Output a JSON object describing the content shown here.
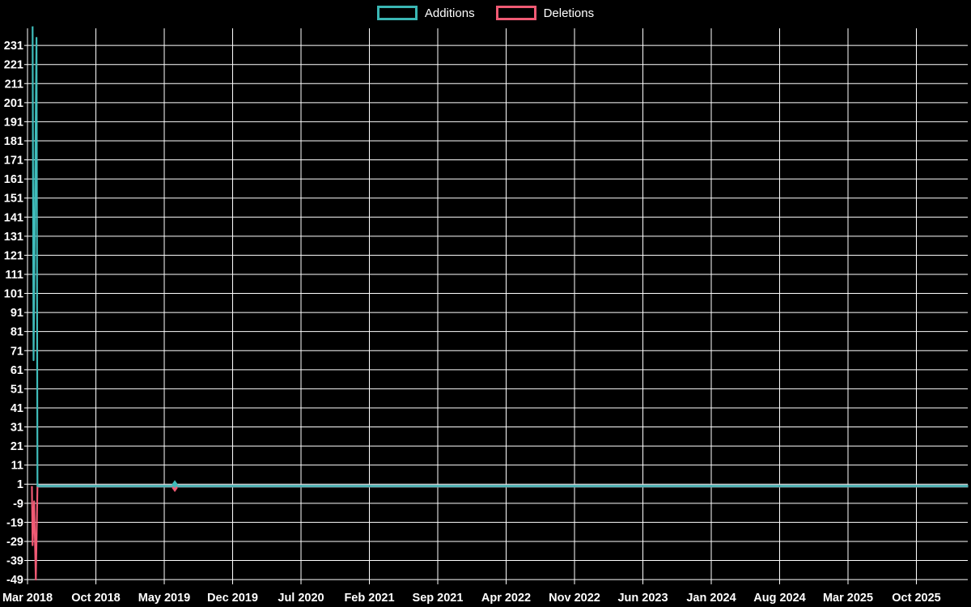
{
  "chart_data": {
    "type": "line",
    "title": "",
    "background_color": "#000000",
    "grid_color": "#ffffff",
    "text_color": "#ffffff",
    "legend": {
      "position": "top-center",
      "items": [
        {
          "label": "Additions",
          "color": "#3ab7b4"
        },
        {
          "label": "Deletions",
          "color": "#f05a74"
        }
      ]
    },
    "x_axis": {
      "tick_labels": [
        "Mar 2018",
        "Oct 2018",
        "May 2019",
        "Dec 2019",
        "Jul 2020",
        "Feb 2021",
        "Sep 2021",
        "Apr 2022",
        "Nov 2022",
        "Jun 2023",
        "Jan 2024",
        "Aug 2024",
        "Mar 2025",
        "Oct 2025"
      ],
      "months_between_ticks": 7
    },
    "y_axis": {
      "tick_values": [
        231,
        221,
        211,
        201,
        191,
        181,
        171,
        161,
        151,
        141,
        131,
        121,
        111,
        101,
        91,
        81,
        71,
        61,
        51,
        41,
        31,
        21,
        11,
        1,
        -9,
        -19,
        -29,
        -39,
        -49
      ],
      "range": [
        -49,
        241
      ],
      "grid": true
    },
    "series": [
      {
        "name": "Additions",
        "color": "#3fbcba",
        "points_month_value": [
          [
            0.52,
            241
          ],
          [
            0.62,
            66
          ],
          [
            0.92,
            235
          ],
          [
            1.02,
            0
          ],
          [
            96.3,
            0
          ]
        ]
      },
      {
        "name": "Deletions",
        "color": "#f05a74",
        "points_month_value": [
          [
            0.45,
            0
          ],
          [
            0.52,
            -31
          ],
          [
            0.68,
            -8
          ],
          [
            0.85,
            -49
          ],
          [
            1.02,
            0
          ],
          [
            96.3,
            0
          ]
        ]
      }
    ],
    "overlap_line": {
      "color": "#8da4ae",
      "value": 0,
      "from_month": 1.02,
      "to_month": 96.3
    },
    "markers": [
      {
        "series": "Additions",
        "month": 15.08,
        "value": 1,
        "shape": "diamond",
        "color": "#3fbcba"
      },
      {
        "series": "Deletions",
        "month": 15.08,
        "value": -1,
        "shape": "diamond",
        "color": "#f05a74"
      }
    ]
  }
}
